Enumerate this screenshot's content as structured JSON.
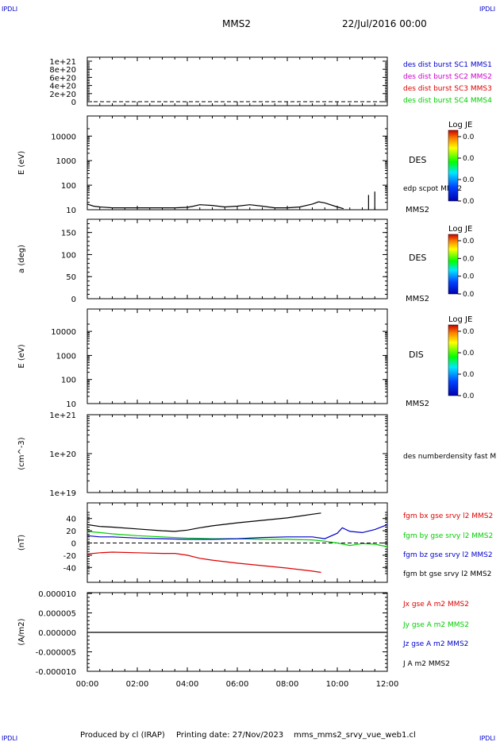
{
  "corner_marks": {
    "top_left": "IPDLI",
    "top_right": "IPDLI",
    "bottom_left": "IPDLI",
    "bottom_right": "IPDLI"
  },
  "header": {
    "title": "MMS2",
    "datetime": "22/Jul/2016 00:00"
  },
  "footer": {
    "produced_by": "Produced by cl (IRAP)",
    "printing_date": "Printing date: 27/Nov/2023",
    "filename": "mms_mms2_srvy_vue_web1.cl"
  },
  "colors": {
    "blue": "#0000cc",
    "magenta": "#cc00cc",
    "red": "#dd0000",
    "green": "#00cc00",
    "black": "#000000"
  },
  "colorbar": {
    "title": "Log JE",
    "values": [
      "0.0",
      "0.0",
      "0.0",
      "0.0"
    ]
  },
  "chart_data": [
    {
      "type": "line",
      "panel": "distribution",
      "ylabel": "",
      "ylim": [
        0,
        1e+21
      ],
      "yticks": [
        "1e+21",
        "8e+20",
        "6e+20",
        "4e+20",
        "2e+20",
        "0"
      ],
      "series": [
        {
          "name": "des dist burst SC1 MMS1",
          "color": "#0000cc"
        },
        {
          "name": "des dist burst SC2 MMS2",
          "color": "#cc00cc"
        },
        {
          "name": "des dist burst SC3 MMS3",
          "color": "#dd0000"
        },
        {
          "name": "des dist burst SC4 MMS4",
          "color": "#00cc00"
        }
      ],
      "reference_line": 0
    },
    {
      "type": "line",
      "panel": "des-energy",
      "ylabel": "E (eV)",
      "yscale": "log",
      "ylim": [
        10,
        20000
      ],
      "yticks": [
        "10000",
        "1000",
        "100",
        "10"
      ],
      "label_right": "DES",
      "sublabel": "MMS2",
      "series": [
        {
          "name": "edp scpot MMS2",
          "color": "#000000",
          "x": [
            0,
            0.25,
            0.5,
            1,
            1.5,
            2,
            2.5,
            3,
            3.5,
            4,
            4.25,
            4.5,
            5,
            5.5,
            6,
            6.5,
            7,
            7.5,
            7.75,
            8,
            8.5,
            9,
            9.25,
            9.5,
            10,
            10.25
          ],
          "y": [
            17,
            14,
            13,
            12,
            12,
            12,
            12,
            12,
            12,
            12.5,
            14,
            16,
            15,
            13,
            14,
            16,
            14,
            12,
            12,
            12,
            13,
            17,
            21,
            19,
            13,
            11
          ]
        }
      ],
      "spikes_x": [
        11.25,
        11.5
      ]
    },
    {
      "type": "heatmap",
      "panel": "des-pitch",
      "ylabel": "a (deg)",
      "ylim": [
        0,
        180
      ],
      "yticks": [
        "150",
        "100",
        "50",
        "0"
      ],
      "label_right": "DES",
      "sublabel": "MMS2"
    },
    {
      "type": "heatmap",
      "panel": "dis-energy",
      "ylabel": "E (eV)",
      "yscale": "log",
      "ylim": [
        10,
        20000
      ],
      "yticks": [
        "10000",
        "1000",
        "100",
        "10"
      ],
      "label_right": "DIS",
      "sublabel": "MMS2"
    },
    {
      "type": "line",
      "panel": "density",
      "ylabel": "(cm^-3)",
      "yscale": "log",
      "ylim": [
        1e+19,
        1e+21
      ],
      "yticks": [
        "1e+21",
        "1e+20",
        "1e+19"
      ],
      "series": [
        {
          "name": "des numberdensity fast M",
          "color": "#000000"
        }
      ]
    },
    {
      "type": "line",
      "panel": "fgm",
      "ylabel": "(nT)",
      "ylim": [
        -50,
        50
      ],
      "yticks": [
        "40",
        "20",
        "0",
        "-20",
        "-40"
      ],
      "reference_line": 0,
      "series": [
        {
          "name": "fgm bx gse srvy l2 MMS2",
          "color": "#dd0000",
          "x": [
            0,
            0.5,
            1,
            2,
            3,
            3.5,
            4,
            4.5,
            5,
            6,
            7,
            8,
            9,
            9.35
          ],
          "y": [
            -18,
            -16,
            -15,
            -16,
            -17,
            -17,
            -20,
            -25,
            -28,
            -33,
            -37,
            -41,
            -46,
            -48
          ]
        },
        {
          "name": "fgm by gse srvy l2 MMS2",
          "color": "#00cc00",
          "x": [
            0,
            0.5,
            1,
            2,
            3,
            4,
            5,
            6,
            7,
            8,
            9,
            9.5,
            10,
            10.5,
            11,
            11.5,
            12
          ],
          "y": [
            19,
            17,
            15,
            12,
            10,
            8,
            7,
            7,
            6,
            6,
            5,
            3,
            0,
            -4,
            -1,
            -2,
            -6
          ]
        },
        {
          "name": "fgm bz gse srvy l2 MMS2",
          "color": "#0000cc",
          "x": [
            0,
            0.5,
            1,
            2,
            3,
            4,
            5,
            6,
            7,
            8,
            9,
            9.5,
            10,
            10.2,
            10.5,
            11,
            11.5,
            12
          ],
          "y": [
            12,
            10,
            10,
            8,
            7,
            6,
            6,
            7,
            9,
            10,
            10,
            7,
            16,
            25,
            19,
            17,
            22,
            30
          ]
        },
        {
          "name": "fgm bt gse srvy l2 MMS2",
          "color": "#000000",
          "x": [
            0,
            0.5,
            1,
            2,
            3,
            3.5,
            4,
            4.5,
            5,
            6,
            7,
            8,
            9,
            9.35
          ],
          "y": [
            30,
            27,
            26,
            23,
            20,
            19,
            21,
            25,
            28,
            33,
            37,
            41,
            47,
            49
          ]
        }
      ]
    },
    {
      "type": "line",
      "panel": "current",
      "ylabel": "(A/m2)",
      "ylim": [
        -1e-05,
        1e-05
      ],
      "yticks": [
        "0.000010",
        "0.000005",
        "0.000000",
        "-0.000005",
        "-0.000010"
      ],
      "series": [
        {
          "name": "Jx gse A m2 MMS2",
          "color": "#dd0000"
        },
        {
          "name": "Jy gse A m2 MMS2",
          "color": "#00cc00"
        },
        {
          "name": "Jz gse A m2 MMS2",
          "color": "#0000cc"
        },
        {
          "name": "J A m2 MMS2",
          "color": "#000000",
          "x": [
            0,
            12
          ],
          "y": [
            0,
            0
          ]
        }
      ]
    }
  ],
  "xaxis": {
    "range": [
      0,
      12
    ],
    "ticks": [
      "00:00",
      "02:00",
      "04:00",
      "06:00",
      "08:00",
      "10:00",
      "12:00"
    ]
  }
}
